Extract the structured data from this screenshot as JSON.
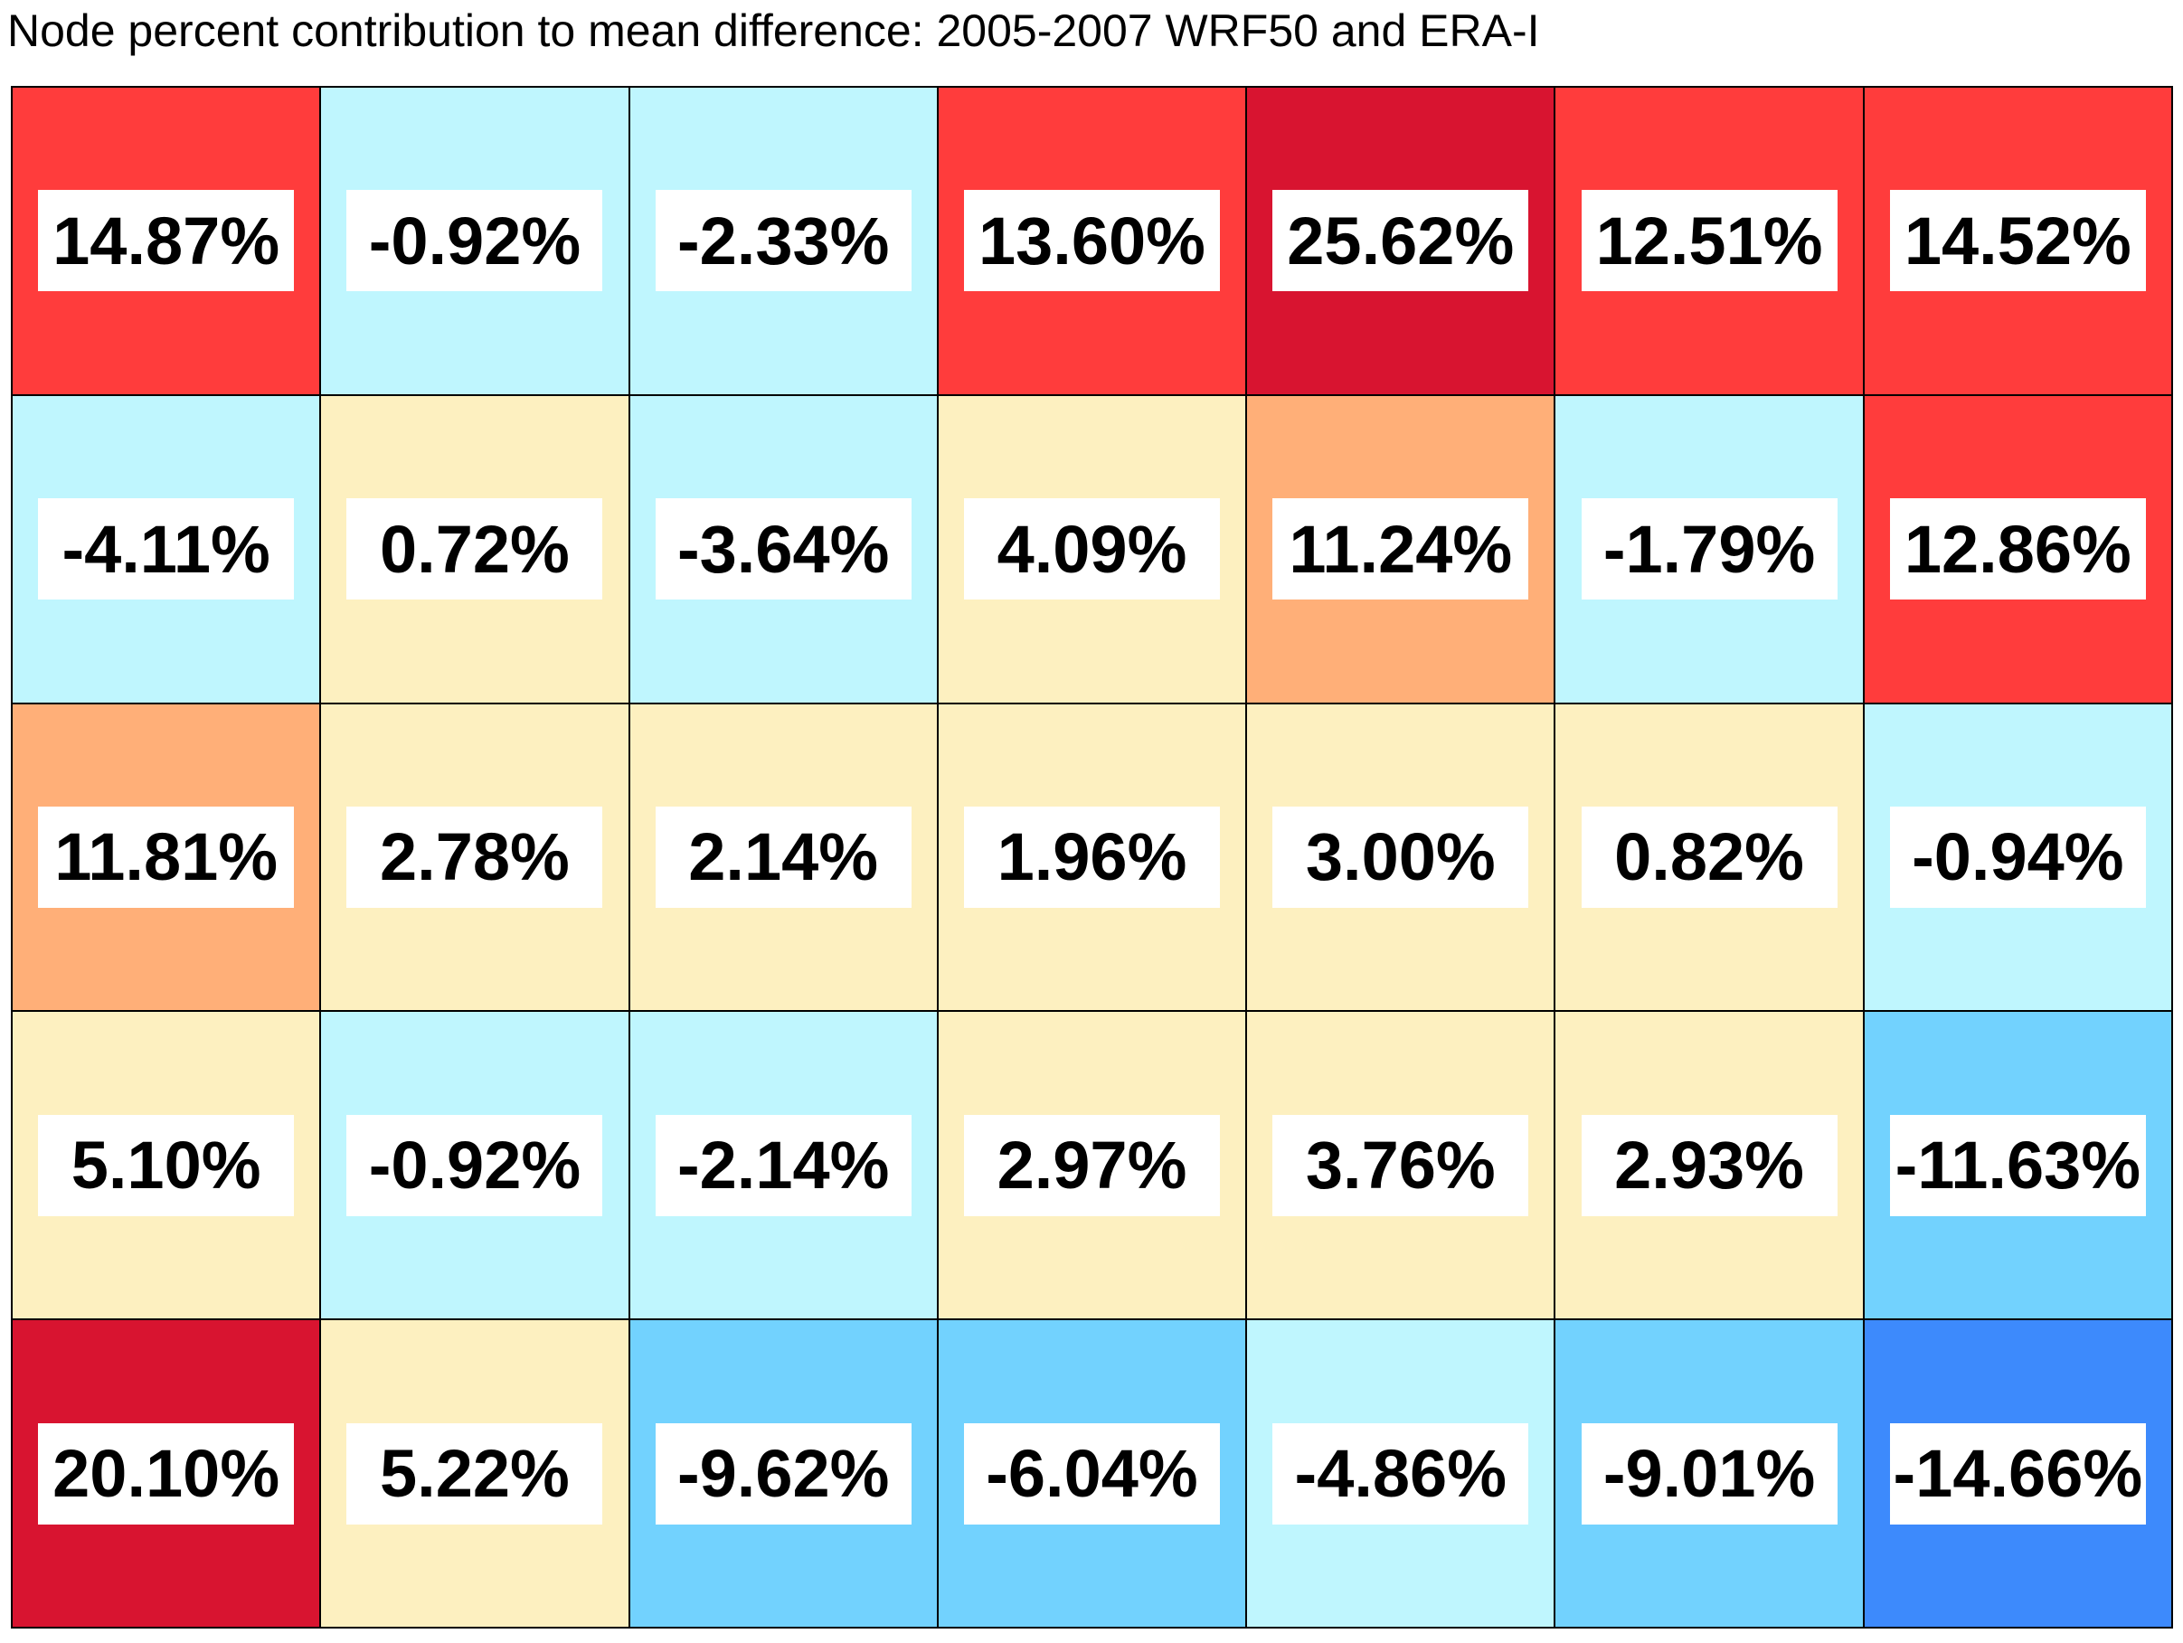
{
  "chart_data": {
    "type": "heatmap",
    "title": "Node percent contribution to mean difference: 2005-2007 WRF50 and ERA-I",
    "rows": 5,
    "cols": 7,
    "unit": "%",
    "values": [
      [
        14.87,
        -0.92,
        -2.33,
        13.6,
        25.62,
        12.51,
        14.52
      ],
      [
        -4.11,
        0.72,
        -3.64,
        4.09,
        11.24,
        -1.79,
        12.86
      ],
      [
        11.81,
        2.78,
        2.14,
        1.96,
        3.0,
        0.82,
        -0.94
      ],
      [
        5.1,
        -0.92,
        -2.14,
        2.97,
        3.76,
        2.93,
        -11.63
      ],
      [
        20.1,
        5.22,
        -9.62,
        -6.04,
        -4.86,
        -9.01,
        -14.66
      ]
    ],
    "labels": [
      [
        "14.87%",
        "-0.92%",
        "-2.33%",
        "13.60%",
        "25.62%",
        "12.51%",
        "14.52%"
      ],
      [
        "-4.11%",
        "0.72%",
        "-3.64%",
        "4.09%",
        "11.24%",
        "-1.79%",
        "12.86%"
      ],
      [
        "11.81%",
        "2.78%",
        "2.14%",
        "1.96%",
        "3.00%",
        "0.82%",
        "-0.94%"
      ],
      [
        "5.10%",
        "-0.92%",
        "-2.14%",
        "2.97%",
        "3.76%",
        "2.93%",
        "-11.63%"
      ],
      [
        "20.10%",
        "5.22%",
        "-9.62%",
        "-6.04%",
        "-4.86%",
        "-9.01%",
        "-14.66%"
      ]
    ],
    "color_bins": [
      {
        "min": 20,
        "color": "#d81430"
      },
      {
        "min": 12.5,
        "color": "#ff3c3c"
      },
      {
        "min": 10,
        "color": "#ffaf78"
      },
      {
        "min": 0,
        "color": "#fdf0c0"
      },
      {
        "min": -5,
        "color": "#bff6fe"
      },
      {
        "min": -12,
        "color": "#72d2fe"
      },
      {
        "min": -1000,
        "color": "#3d8afc"
      }
    ]
  }
}
